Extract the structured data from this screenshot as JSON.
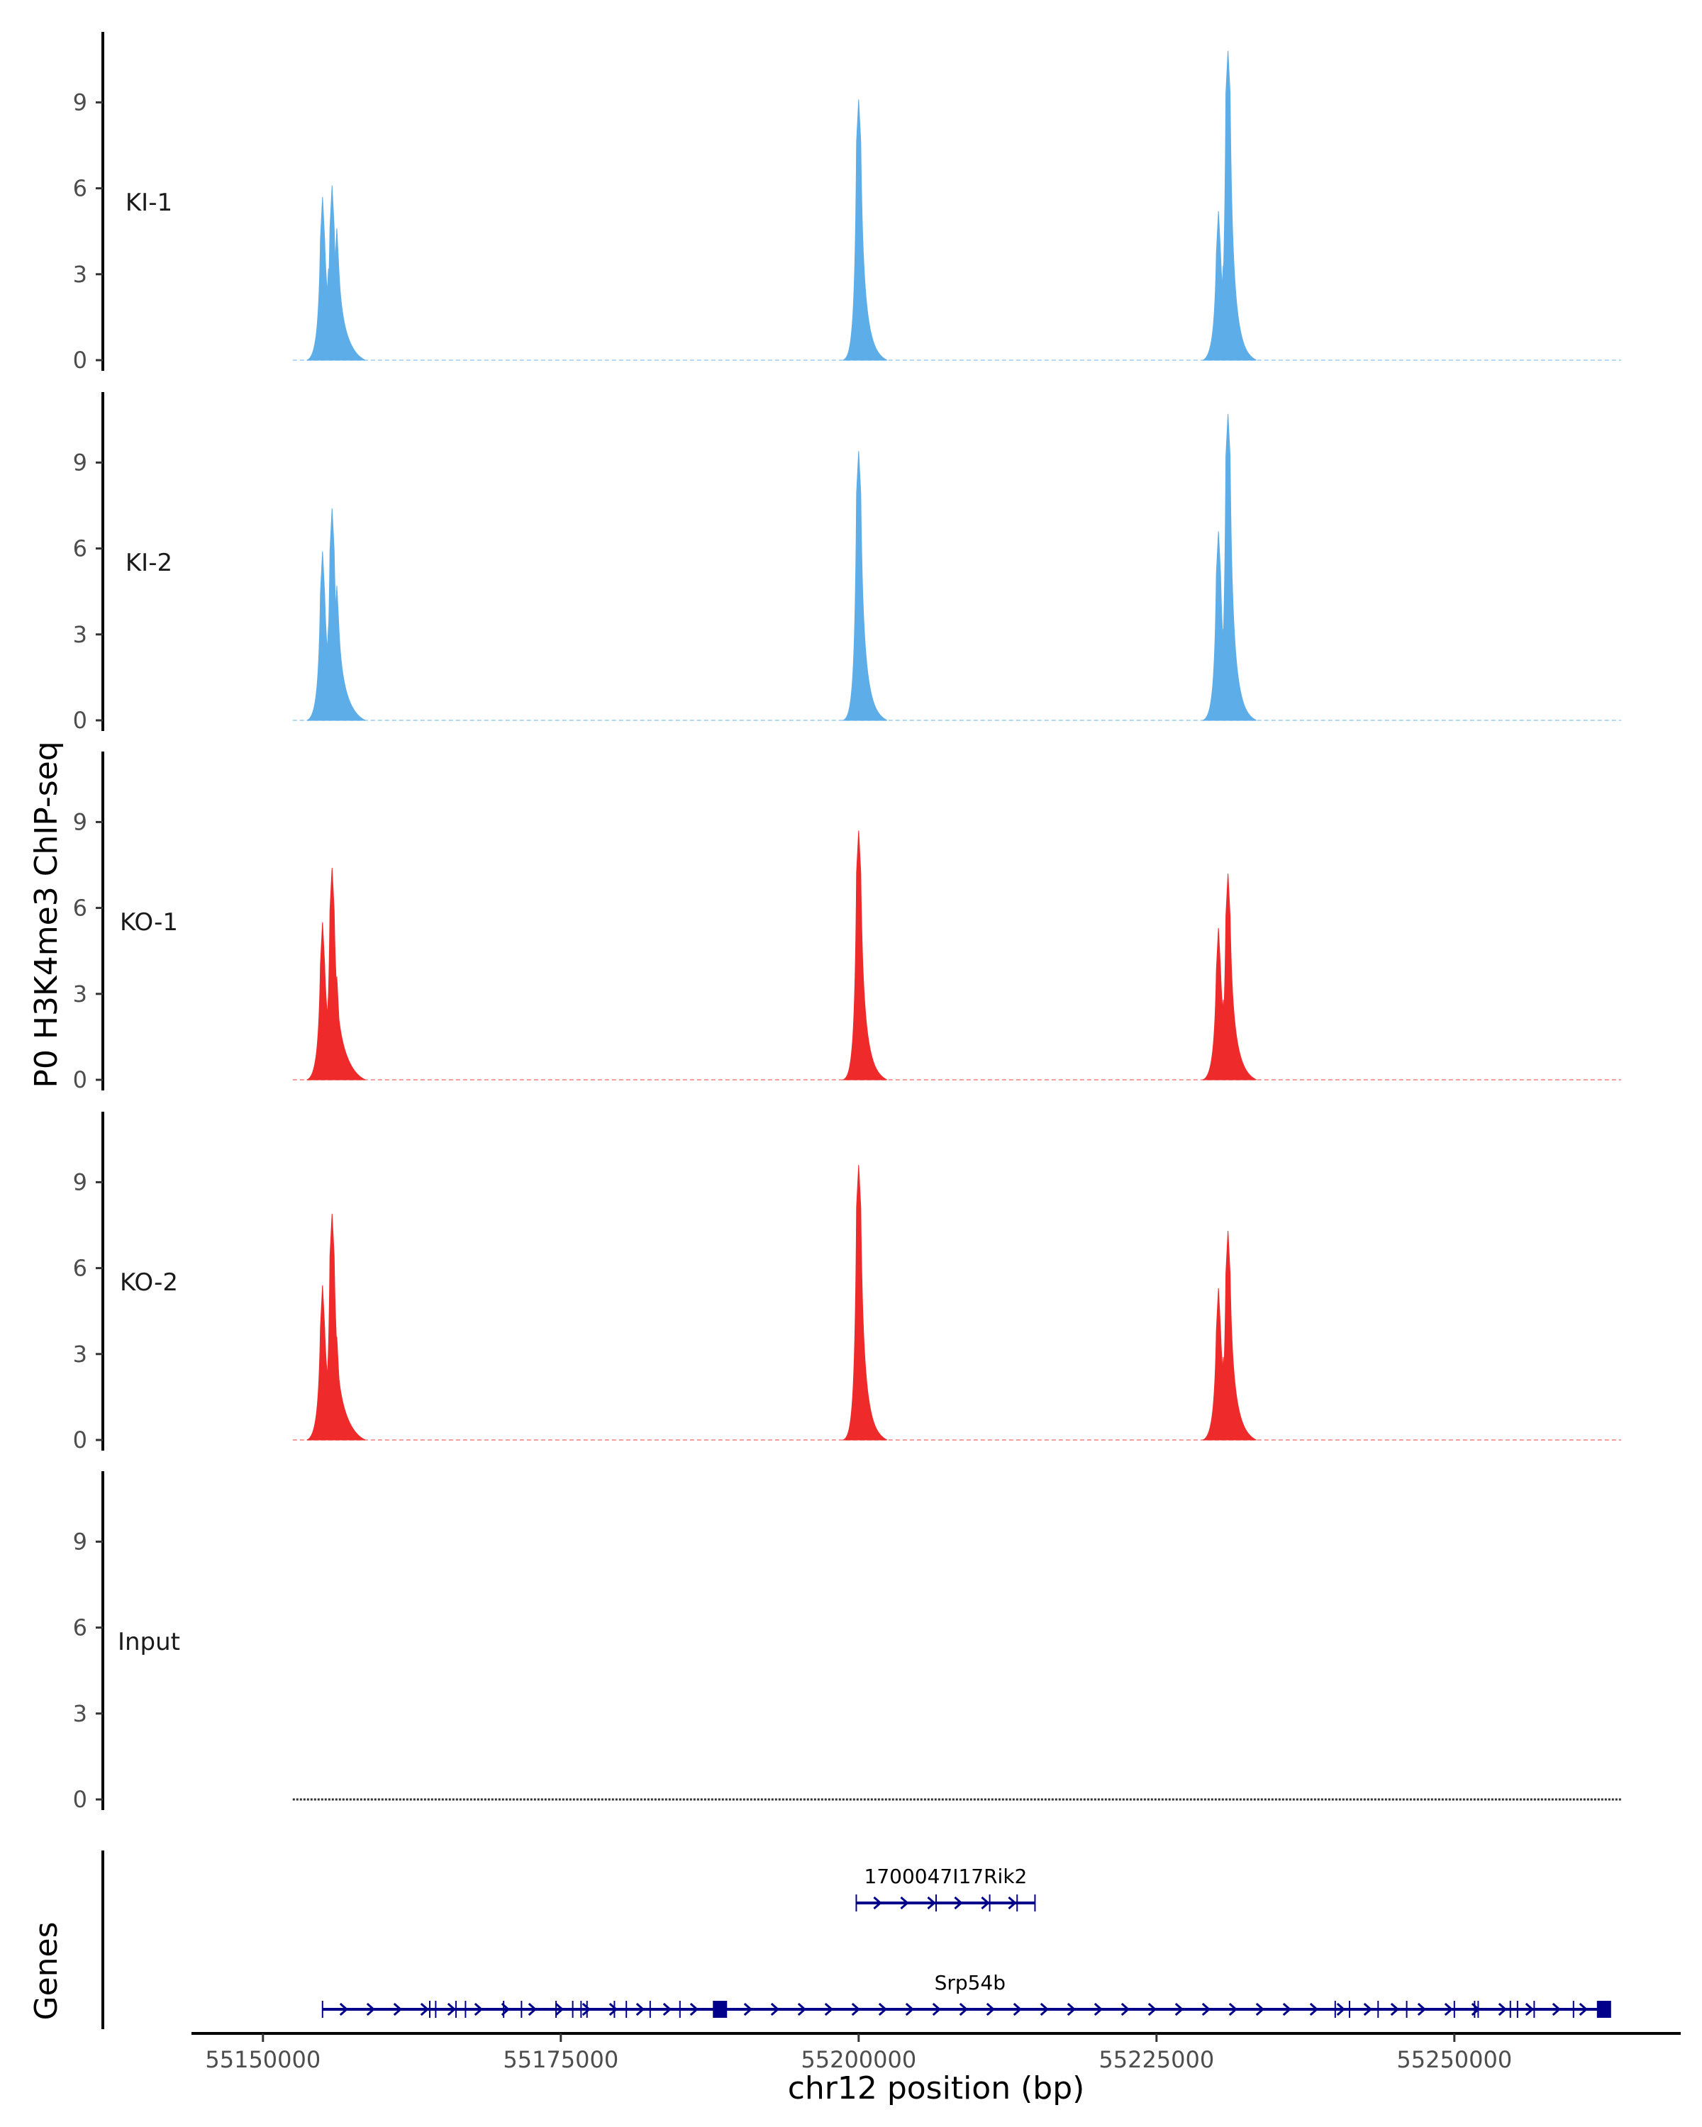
{
  "chart_data": {
    "type": "area",
    "ylabel": "P0 H3K4me3 ChIP-seq",
    "xlabel": "chr12 position (bp)",
    "genes_label": "Genes",
    "y_ticks": [
      "0",
      "3",
      "6",
      "9"
    ],
    "ylim": [
      0,
      11.2
    ],
    "xlim": [
      55144000,
      55269000
    ],
    "x_ticks": [
      55150000,
      55175000,
      55200000,
      55225000,
      55250000
    ],
    "x_tick_labels": [
      "55150000",
      "55175000",
      "55200000",
      "55225000",
      "55250000"
    ],
    "signal_range": [
      55152500,
      55264000
    ],
    "series": [
      {
        "name": "KI-1",
        "color": "#5dade8",
        "peaks": [
          {
            "x": 55155000,
            "value": 5.7
          },
          {
            "x": 55155500,
            "value": 3.2
          },
          {
            "x": 55155800,
            "value": 6.1
          },
          {
            "x": 55156200,
            "value": 4.6
          },
          {
            "x": 55200000,
            "value": 9.1
          },
          {
            "x": 55230200,
            "value": 5.2
          },
          {
            "x": 55230600,
            "value": 3.3
          },
          {
            "x": 55231000,
            "value": 10.8
          }
        ]
      },
      {
        "name": "KI-2",
        "color": "#5dade8",
        "peaks": [
          {
            "x": 55155000,
            "value": 5.9
          },
          {
            "x": 55155500,
            "value": 3.3
          },
          {
            "x": 55155800,
            "value": 7.4
          },
          {
            "x": 55156200,
            "value": 4.7
          },
          {
            "x": 55200000,
            "value": 9.4
          },
          {
            "x": 55230200,
            "value": 6.6
          },
          {
            "x": 55230600,
            "value": 3.2
          },
          {
            "x": 55231000,
            "value": 10.7
          }
        ]
      },
      {
        "name": "KO-1",
        "color": "#ee2a2a",
        "peaks": [
          {
            "x": 55155000,
            "value": 5.5
          },
          {
            "x": 55155500,
            "value": 3.0
          },
          {
            "x": 55155800,
            "value": 7.4
          },
          {
            "x": 55156200,
            "value": 3.6
          },
          {
            "x": 55200000,
            "value": 8.7
          },
          {
            "x": 55230200,
            "value": 5.3
          },
          {
            "x": 55230600,
            "value": 2.8
          },
          {
            "x": 55231000,
            "value": 7.2
          }
        ]
      },
      {
        "name": "KO-2",
        "color": "#ee2a2a",
        "peaks": [
          {
            "x": 55155000,
            "value": 5.4
          },
          {
            "x": 55155500,
            "value": 3.0
          },
          {
            "x": 55155800,
            "value": 7.9
          },
          {
            "x": 55156200,
            "value": 3.6
          },
          {
            "x": 55200000,
            "value": 9.6
          },
          {
            "x": 55230200,
            "value": 5.3
          },
          {
            "x": 55230600,
            "value": 2.9
          },
          {
            "x": 55231000,
            "value": 7.3
          }
        ]
      },
      {
        "name": "Input",
        "color": "#333333",
        "peaks": []
      }
    ],
    "genes": [
      {
        "name": "1700047I17Rik2",
        "start": 55199800,
        "end": 55214800,
        "row": 1,
        "exons": [
          55199800,
          55206500,
          55211000,
          55213300,
          55214800
        ]
      },
      {
        "name": "Srp54b",
        "start": 55155000,
        "end": 55262500,
        "row": 2,
        "exons": [
          55155000,
          55164000,
          55164500,
          55166200,
          55167000,
          55170200,
          55171700,
          55174600,
          55176000,
          55176700,
          55177200,
          55179500,
          55180500,
          55182500,
          55185000,
          55188300,
          55240000,
          55241200,
          55243600,
          55246000,
          55250000,
          55251700,
          55252000,
          55254700,
          55255300,
          55256700,
          55260000,
          55262500
        ],
        "blocks": [
          55188300,
          55262500
        ]
      }
    ]
  }
}
